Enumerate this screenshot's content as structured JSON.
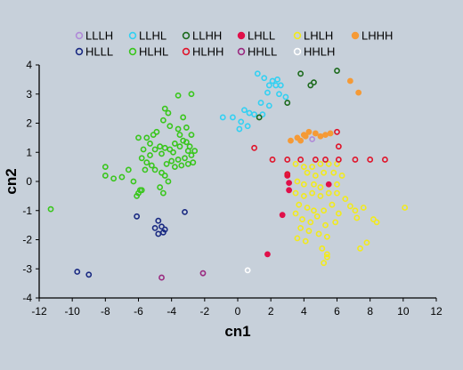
{
  "chart_data": {
    "type": "scatter",
    "xlabel": "cn1",
    "ylabel": "cn2",
    "xlim": [
      -12,
      12
    ],
    "ylim": [
      -4,
      4
    ],
    "x_ticks": [
      -12,
      -10,
      -8,
      -6,
      -4,
      -2,
      0,
      2,
      4,
      6,
      8,
      10,
      12
    ],
    "y_ticks": [
      -4,
      -3,
      -2,
      -1,
      0,
      1,
      2,
      3,
      4
    ],
    "grid": false,
    "legend_position": "top",
    "series": [
      {
        "name": "LLLH",
        "color": "#b08ad8",
        "filled": false,
        "points": [
          [
            4.5,
            1.45
          ]
        ]
      },
      {
        "name": "LLHL",
        "color": "#33d0f2",
        "filled": false,
        "points": [
          [
            1.2,
            3.7
          ],
          [
            1.6,
            3.55
          ],
          [
            2.1,
            3.45
          ],
          [
            2.4,
            3.5
          ],
          [
            2.3,
            3.3
          ],
          [
            2.6,
            3.3
          ],
          [
            1.9,
            3.3
          ],
          [
            2.5,
            3.0
          ],
          [
            1.8,
            3.05
          ],
          [
            1.4,
            2.7
          ],
          [
            2.9,
            2.9
          ],
          [
            1.9,
            2.6
          ],
          [
            0.4,
            2.45
          ],
          [
            0.7,
            2.35
          ],
          [
            1.0,
            2.3
          ],
          [
            -0.3,
            2.2
          ],
          [
            -0.9,
            2.2
          ],
          [
            0.2,
            2.05
          ],
          [
            0.6,
            1.9
          ],
          [
            0.1,
            1.8
          ],
          [
            1.5,
            2.3
          ]
        ]
      },
      {
        "name": "LLHH",
        "color": "#1c6a1c",
        "filled": false,
        "points": [
          [
            3.8,
            3.7
          ],
          [
            6.0,
            3.8
          ],
          [
            4.6,
            3.4
          ],
          [
            4.4,
            3.3
          ],
          [
            3.0,
            2.7
          ],
          [
            1.3,
            2.2
          ]
        ]
      },
      {
        "name": "LHLL",
        "color": "#e0104a",
        "filled": true,
        "points": [
          [
            5.5,
            -0.1
          ],
          [
            3.1,
            -0.05
          ],
          [
            3.1,
            -0.3
          ],
          [
            3.0,
            0.2
          ],
          [
            2.7,
            -1.15
          ],
          [
            1.8,
            -2.5
          ]
        ]
      },
      {
        "name": "LHLH",
        "color": "#f2ea1c",
        "filled": false,
        "points": [
          [
            3.5,
            0.6
          ],
          [
            4.0,
            0.5
          ],
          [
            4.5,
            0.5
          ],
          [
            5.0,
            0.6
          ],
          [
            5.5,
            0.6
          ],
          [
            6.0,
            0.6
          ],
          [
            4.2,
            0.3
          ],
          [
            4.7,
            0.2
          ],
          [
            5.2,
            0.3
          ],
          [
            5.8,
            0.3
          ],
          [
            6.3,
            0.2
          ],
          [
            3.6,
            0.0
          ],
          [
            4.0,
            -0.1
          ],
          [
            4.6,
            -0.1
          ],
          [
            5.0,
            -0.2
          ],
          [
            6.0,
            -0.1
          ],
          [
            3.5,
            -0.4
          ],
          [
            4.0,
            -0.5
          ],
          [
            4.5,
            -0.4
          ],
          [
            5.0,
            -0.5
          ],
          [
            5.5,
            -0.4
          ],
          [
            6.0,
            -0.4
          ],
          [
            6.5,
            -0.6
          ],
          [
            3.7,
            -0.8
          ],
          [
            4.2,
            -0.9
          ],
          [
            4.6,
            -1.0
          ],
          [
            5.2,
            -1.0
          ],
          [
            5.7,
            -0.8
          ],
          [
            6.1,
            -1.1
          ],
          [
            3.5,
            -1.1
          ],
          [
            3.9,
            -1.3
          ],
          [
            4.4,
            -1.4
          ],
          [
            4.8,
            -1.2
          ],
          [
            5.3,
            -1.5
          ],
          [
            5.9,
            -1.4
          ],
          [
            3.8,
            -1.6
          ],
          [
            4.3,
            -1.7
          ],
          [
            4.9,
            -1.8
          ],
          [
            5.4,
            -1.9
          ],
          [
            3.6,
            -1.95
          ],
          [
            4.1,
            -2.05
          ],
          [
            5.1,
            -2.3
          ],
          [
            5.4,
            -2.6
          ],
          [
            5.2,
            -2.8
          ],
          [
            7.1,
            -1.0
          ],
          [
            7.2,
            -1.25
          ],
          [
            7.4,
            -2.3
          ],
          [
            7.8,
            -2.1
          ],
          [
            7.6,
            -0.9
          ],
          [
            8.2,
            -1.3
          ],
          [
            8.4,
            -1.4
          ],
          [
            10.1,
            -0.9
          ],
          [
            6.8,
            -0.85
          ],
          [
            5.4,
            -2.5
          ]
        ]
      },
      {
        "name": "LHHH",
        "color": "#f59a36",
        "filled": true,
        "points": [
          [
            6.8,
            3.45
          ],
          [
            7.3,
            3.05
          ],
          [
            3.2,
            1.4
          ],
          [
            3.6,
            1.5
          ],
          [
            4.0,
            1.6
          ],
          [
            4.3,
            1.7
          ],
          [
            4.7,
            1.65
          ],
          [
            5.0,
            1.55
          ],
          [
            5.3,
            1.6
          ],
          [
            5.6,
            1.65
          ],
          [
            3.8,
            1.4
          ],
          [
            4.1,
            1.55
          ]
        ]
      },
      {
        "name": "HLLL",
        "color": "#1a2a82",
        "filled": false,
        "points": [
          [
            -6.1,
            -1.2
          ],
          [
            -3.2,
            -1.05
          ],
          [
            -4.8,
            -1.35
          ],
          [
            -5.0,
            -1.6
          ],
          [
            -4.6,
            -1.55
          ],
          [
            -4.4,
            -1.65
          ],
          [
            -4.8,
            -1.8
          ],
          [
            -4.5,
            -1.75
          ],
          [
            -9.7,
            -3.1
          ],
          [
            -9.0,
            -3.2
          ]
        ]
      },
      {
        "name": "HLHL",
        "color": "#39c61c",
        "filled": false,
        "points": [
          [
            -11.3,
            -0.95
          ],
          [
            -8.0,
            0.5
          ],
          [
            -8.0,
            0.2
          ],
          [
            -7.5,
            0.1
          ],
          [
            -7.0,
            0.15
          ],
          [
            -6.6,
            0.4
          ],
          [
            -6.3,
            0.0
          ],
          [
            -6.0,
            -0.4
          ],
          [
            -5.8,
            -0.3
          ],
          [
            -6.1,
            -0.5
          ],
          [
            -5.9,
            -0.3
          ],
          [
            -5.6,
            0.4
          ],
          [
            -5.8,
            0.8
          ],
          [
            -5.2,
            0.55
          ],
          [
            -5.0,
            0.4
          ],
          [
            -4.6,
            0.3
          ],
          [
            -4.4,
            0.2
          ],
          [
            -4.2,
            0.0
          ],
          [
            -4.7,
            -0.2
          ],
          [
            -4.5,
            -0.4
          ],
          [
            -5.5,
            1.5
          ],
          [
            -5.1,
            1.6
          ],
          [
            -4.9,
            1.7
          ],
          [
            -5.3,
            1.3
          ],
          [
            -5.0,
            1.1
          ],
          [
            -4.7,
            1.2
          ],
          [
            -4.4,
            1.15
          ],
          [
            -4.1,
            1.1
          ],
          [
            -3.8,
            1.3
          ],
          [
            -3.5,
            1.2
          ],
          [
            -3.3,
            1.4
          ],
          [
            -3.1,
            1.35
          ],
          [
            -2.9,
            1.2
          ],
          [
            -2.6,
            1.05
          ],
          [
            -2.8,
            0.9
          ],
          [
            -3.2,
            0.8
          ],
          [
            -3.6,
            0.75
          ],
          [
            -4.0,
            0.7
          ],
          [
            -4.3,
            0.6
          ],
          [
            -3.8,
            0.5
          ],
          [
            -3.4,
            0.55
          ],
          [
            -3.0,
            0.6
          ],
          [
            -2.7,
            0.65
          ],
          [
            -4.5,
            2.1
          ],
          [
            -4.1,
            1.9
          ],
          [
            -3.6,
            1.8
          ],
          [
            -3.1,
            1.85
          ],
          [
            -2.8,
            1.6
          ],
          [
            -4.4,
            2.5
          ],
          [
            -3.6,
            2.95
          ],
          [
            -2.8,
            3.0
          ],
          [
            -3.3,
            2.2
          ],
          [
            -6.0,
            1.5
          ],
          [
            -5.7,
            1.1
          ],
          [
            -5.3,
            0.9
          ],
          [
            -5.5,
            0.65
          ],
          [
            -3.9,
            1.0
          ],
          [
            -3.5,
            1.6
          ],
          [
            -3.0,
            1.05
          ],
          [
            -4.2,
            2.35
          ],
          [
            -4.6,
            0.95
          ]
        ]
      },
      {
        "name": "HLHH",
        "color": "#e0142a",
        "filled": false,
        "points": [
          [
            1.0,
            1.15
          ],
          [
            2.1,
            0.75
          ],
          [
            3.0,
            0.75
          ],
          [
            3.8,
            0.75
          ],
          [
            4.7,
            0.75
          ],
          [
            5.3,
            0.75
          ],
          [
            6.0,
            1.7
          ],
          [
            6.1,
            1.2
          ],
          [
            6.1,
            0.75
          ],
          [
            7.1,
            0.75
          ],
          [
            8.0,
            0.75
          ],
          [
            8.9,
            0.75
          ],
          [
            3.0,
            0.25
          ]
        ]
      },
      {
        "name": "HHLL",
        "color": "#9a2a80",
        "filled": false,
        "points": [
          [
            -4.6,
            -3.3
          ],
          [
            -2.1,
            -3.15
          ]
        ]
      },
      {
        "name": "HHLH",
        "color": "#ffffff",
        "filled": false,
        "points": [
          [
            0.6,
            -3.05
          ]
        ]
      }
    ]
  }
}
